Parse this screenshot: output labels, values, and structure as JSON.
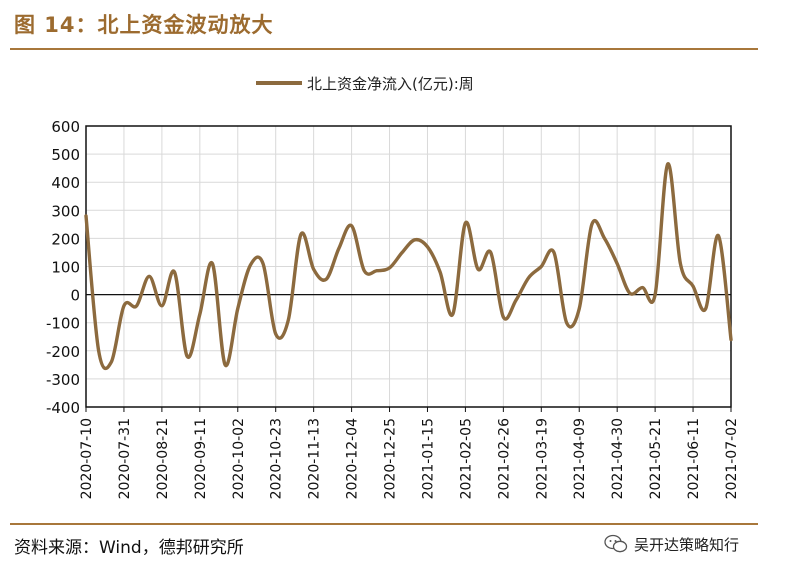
{
  "figure": {
    "title": "图 14：北上资金波动放大",
    "source": "资料来源：Wind，德邦研究所",
    "watermark": "吴开达策略知行"
  },
  "colors": {
    "series": "#8c6a3e",
    "brand": "#9c6b2f",
    "grid": "#d9d9d9",
    "axis": "#111111"
  },
  "chart_data": {
    "type": "line",
    "title": "",
    "xlabel": "",
    "ylabel": "",
    "ylim": [
      -400,
      600
    ],
    "yticks": [
      600,
      500,
      400,
      300,
      200,
      100,
      0,
      -100,
      -200,
      -300,
      -400
    ],
    "grid": true,
    "legend_position": "top-center",
    "x_ticks": [
      "2020-07-10",
      "2020-07-31",
      "2020-08-21",
      "2020-09-11",
      "2020-10-02",
      "2020-10-23",
      "2020-11-13",
      "2020-12-04",
      "2020-12-25",
      "2021-01-15",
      "2021-02-05",
      "2021-02-26",
      "2021-03-19",
      "2021-04-09",
      "2021-04-30",
      "2021-05-21",
      "2021-06-11",
      "2021-07-02"
    ],
    "series": [
      {
        "name": "北上资金净流入(亿元):周",
        "x": [
          "2020-07-10",
          "2020-07-17",
          "2020-07-24",
          "2020-07-31",
          "2020-08-07",
          "2020-08-14",
          "2020-08-21",
          "2020-08-28",
          "2020-09-04",
          "2020-09-11",
          "2020-09-18",
          "2020-09-25",
          "2020-10-02",
          "2020-10-09",
          "2020-10-16",
          "2020-10-23",
          "2020-10-30",
          "2020-11-06",
          "2020-11-13",
          "2020-11-20",
          "2020-11-27",
          "2020-12-04",
          "2020-12-11",
          "2020-12-18",
          "2020-12-25",
          "2021-01-01",
          "2021-01-08",
          "2021-01-15",
          "2021-01-22",
          "2021-01-29",
          "2021-02-05",
          "2021-02-12",
          "2021-02-19",
          "2021-02-26",
          "2021-03-05",
          "2021-03-12",
          "2021-03-19",
          "2021-03-26",
          "2021-04-02",
          "2021-04-09",
          "2021-04-16",
          "2021-04-23",
          "2021-04-30",
          "2021-05-07",
          "2021-05-14",
          "2021-05-21",
          "2021-05-28",
          "2021-06-04",
          "2021-06-11",
          "2021-06-18",
          "2021-06-25",
          "2021-07-02"
        ],
        "values": [
          280,
          -200,
          -240,
          -40,
          -40,
          65,
          -40,
          80,
          -220,
          -70,
          110,
          -250,
          -50,
          105,
          110,
          -140,
          -90,
          215,
          90,
          55,
          165,
          245,
          85,
          85,
          95,
          150,
          195,
          170,
          80,
          -70,
          255,
          90,
          150,
          -80,
          -20,
          60,
          100,
          150,
          -100,
          -50,
          250,
          200,
          110,
          5,
          25,
          0,
          465,
          110,
          30,
          -50,
          210,
          -160
        ]
      }
    ]
  }
}
